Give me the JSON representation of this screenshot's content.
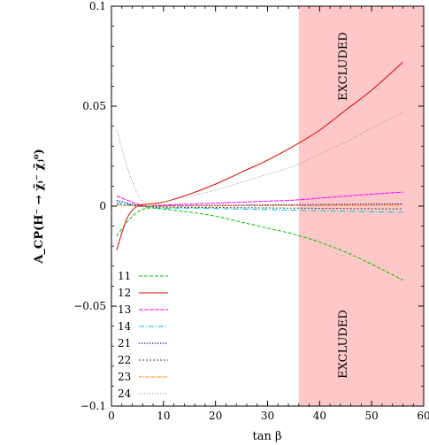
{
  "chart_data": {
    "type": "line",
    "xlabel": "tan β",
    "ylabel": "A_CP(H⁻ → χ̃ᵢ⁻ χ̃ⱼ⁰)",
    "xlim": [
      0,
      60
    ],
    "ylim": [
      -0.1,
      0.1
    ],
    "x_ticks": [
      "0",
      "10",
      "20",
      "30",
      "40",
      "50",
      "60"
    ],
    "y_ticks": [
      "0.1",
      "0.05",
      "0",
      "−0.05",
      "−0.1"
    ],
    "excluded_region": {
      "x_from": 36,
      "x_to": 60,
      "label_top": "EXCLUDED",
      "label_bottom": "EXCLUDED",
      "color": "#ffc8c8"
    },
    "legend_position": "bottom-left",
    "x": [
      1,
      3,
      5,
      7,
      10,
      15,
      20,
      25,
      30,
      35,
      40,
      45,
      50,
      56
    ],
    "series": [
      {
        "name": "11",
        "color": "#00c000",
        "dash": "4,2",
        "values": [
          -0.015,
          -0.008,
          -0.003,
          -0.001,
          -0.0015,
          -0.003,
          -0.005,
          -0.008,
          -0.011,
          -0.014,
          -0.018,
          -0.023,
          -0.029,
          -0.037
        ]
      },
      {
        "name": "12",
        "color": "#e00000",
        "dash": "",
        "values": [
          -0.022,
          -0.006,
          0.0,
          0.001,
          0.002,
          0.006,
          0.011,
          0.017,
          0.023,
          0.03,
          0.038,
          0.048,
          0.058,
          0.072
        ]
      },
      {
        "name": "13",
        "color": "#ff00ff",
        "dash": "5,1",
        "values": [
          0.005,
          0.003,
          0.001,
          0.0,
          0.0005,
          0.001,
          0.0015,
          0.002,
          0.0025,
          0.003,
          0.004,
          0.005,
          0.006,
          0.007
        ]
      },
      {
        "name": "14",
        "color": "#00c0e0",
        "dash": "6,2,1,2",
        "values": [
          0.002,
          0.001,
          0.0,
          -0.0005,
          -0.001,
          -0.001,
          -0.0012,
          -0.0015,
          -0.0017,
          -0.002,
          -0.0022,
          -0.0025,
          -0.0028,
          -0.003
        ]
      },
      {
        "name": "21",
        "color": "#0000a0",
        "dash": "1.5,1.5",
        "values": [
          0.003,
          0.0015,
          0.0005,
          0.0,
          0.0002,
          0.0003,
          0.0004,
          0.0005,
          0.0006,
          0.0007,
          0.0008,
          0.0009,
          0.001,
          0.0011
        ]
      },
      {
        "name": "22",
        "color": "#404040",
        "dash": "2,2",
        "values": [
          0.001,
          0.0005,
          0.0,
          -0.0003,
          -0.0005,
          -0.0006,
          -0.0007,
          -0.0008,
          -0.0009,
          -0.001,
          -0.0011,
          -0.0012,
          -0.0013,
          -0.0014
        ]
      },
      {
        "name": "23",
        "color": "#ff8000",
        "dash": "4,1,1,1",
        "values": [
          0.0005,
          0.0003,
          0.0001,
          0.0,
          0.0,
          0.0001,
          0.0001,
          0.0002,
          0.0002,
          0.0003,
          0.0003,
          0.0004,
          0.0004,
          0.0005
        ]
      },
      {
        "name": "24",
        "color": "#909090",
        "dash": "1,2",
        "values": [
          0.038,
          0.02,
          0.006,
          0.0005,
          0.002,
          0.005,
          0.008,
          0.012,
          0.016,
          0.02,
          0.026,
          0.032,
          0.039,
          0.047
        ]
      }
    ]
  }
}
